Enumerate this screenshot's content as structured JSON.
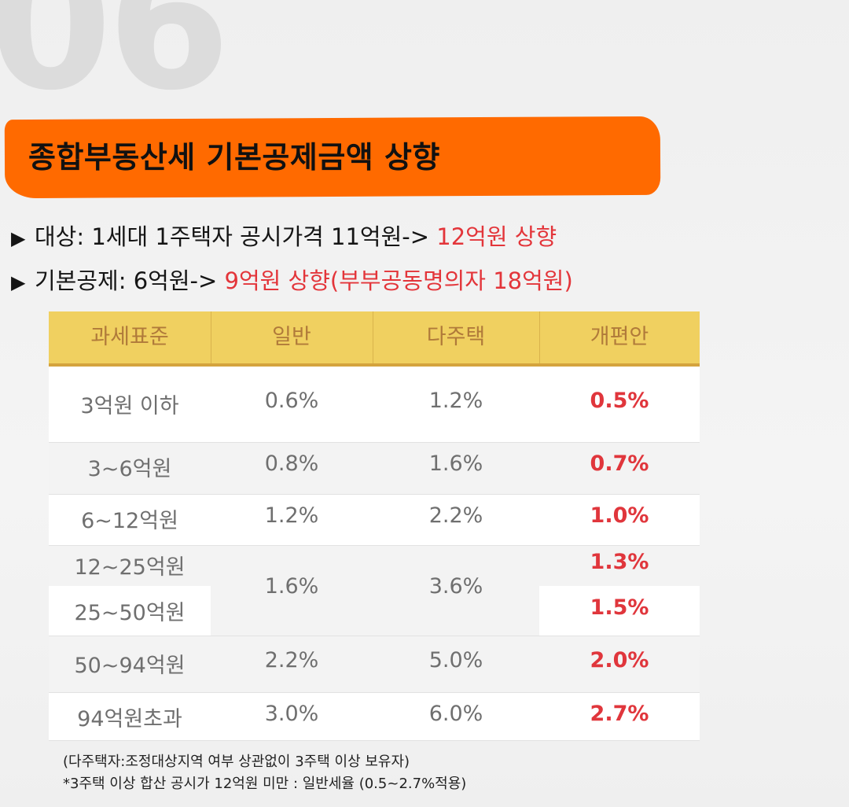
{
  "section_number": "06",
  "title": "종합부동산세 기본공제금액 상향",
  "bullets": [
    {
      "marker": "▶",
      "text": "대상: 1세대 1주택자 공시가격 11억원-> ",
      "highlight": "12억원 상향"
    },
    {
      "marker": "▶",
      "text": "기본공제: 6억원-> ",
      "highlight": "9억원 상향(부부공동명의자 18억원)"
    }
  ],
  "table": {
    "headers": [
      "과세표준",
      "일반",
      "다주택",
      "개편안"
    ],
    "rows": [
      {
        "bracket": "3억원 이하",
        "general": "0.6%",
        "multi": "1.2%",
        "reform": "0.5%"
      },
      {
        "bracket": "3~6억원",
        "general": "0.8%",
        "multi": "1.6%",
        "reform": "0.7%"
      },
      {
        "bracket": "6~12억원",
        "general": "1.2%",
        "multi": "2.2%",
        "reform": "1.0%"
      },
      {
        "bracket": "12~25억원",
        "general": "1.6%",
        "multi": "3.6%",
        "reform": "1.3%"
      },
      {
        "bracket": "25~50억원",
        "general": "",
        "multi": "",
        "reform": "1.5%"
      },
      {
        "bracket": "50~94억원",
        "general": "2.2%",
        "multi": "5.0%",
        "reform": "2.0%"
      },
      {
        "bracket": "94억원초과",
        "general": "3.0%",
        "multi": "6.0%",
        "reform": "2.7%"
      }
    ]
  },
  "notes": [
    "(다주택자:조정대상지역 여부 상관없이 3주택 이상 보유자)",
    "*3주택 이상 합산 공시가 12억원 미만 : 일반세율 (0.5~2.7%적용)"
  ],
  "colors": {
    "accent_orange": "#ff6a00",
    "header_yellow": "#f0d060",
    "highlight_red": "#e3353a"
  }
}
